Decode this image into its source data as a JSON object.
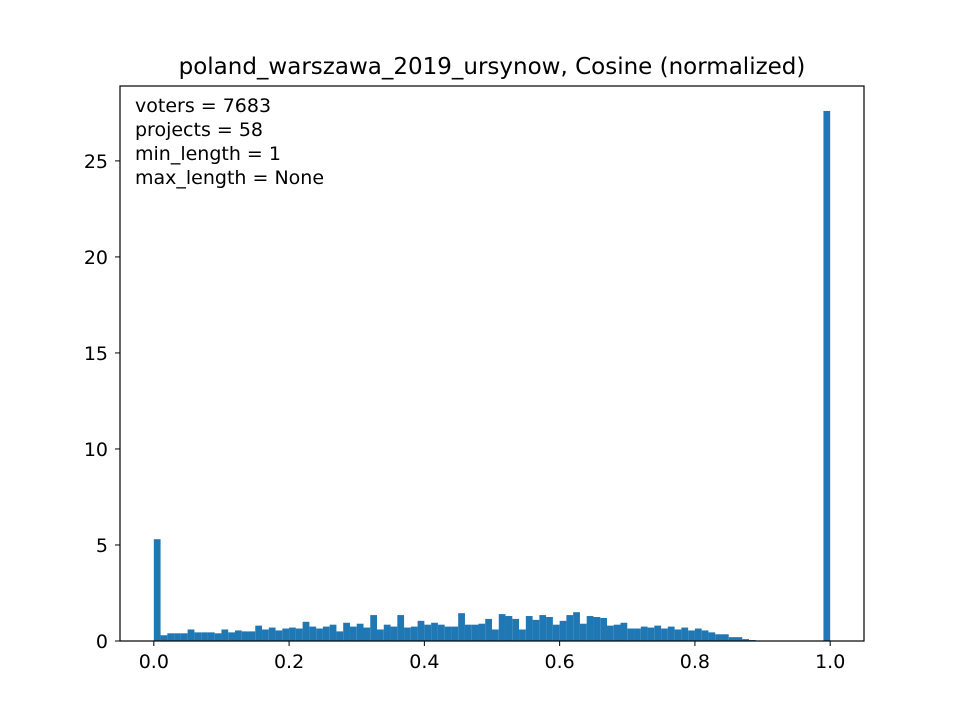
{
  "chart_data": {
    "type": "bar",
    "title": "poland_warszawa_2019_ursynow, Cosine (normalized)",
    "xlabel": "",
    "ylabel": "",
    "xlim": [
      -0.05,
      1.05
    ],
    "ylim": [
      0,
      28.9
    ],
    "x_ticks": [
      0.0,
      0.2,
      0.4,
      0.6,
      0.8,
      1.0
    ],
    "x_tick_labels": [
      "0.0",
      "0.2",
      "0.4",
      "0.6",
      "0.8",
      "1.0"
    ],
    "y_ticks": [
      0,
      5,
      10,
      15,
      20,
      25
    ],
    "y_tick_labels": [
      "0",
      "5",
      "10",
      "15",
      "20",
      "25"
    ],
    "bar_color": "#1f77b4",
    "grid": false,
    "legend": "none",
    "bin_width": 0.01,
    "bin_left_edges": [
      0.0,
      0.01,
      0.02,
      0.03,
      0.04,
      0.05,
      0.06,
      0.07,
      0.08,
      0.09,
      0.1,
      0.11,
      0.12,
      0.13,
      0.14,
      0.15,
      0.16,
      0.17,
      0.18,
      0.19,
      0.2,
      0.21,
      0.22,
      0.23,
      0.24,
      0.25,
      0.26,
      0.27,
      0.28,
      0.29,
      0.3,
      0.31,
      0.32,
      0.33,
      0.34,
      0.35,
      0.36,
      0.37,
      0.38,
      0.39,
      0.4,
      0.41,
      0.42,
      0.43,
      0.44,
      0.45,
      0.46,
      0.47,
      0.48,
      0.49,
      0.5,
      0.51,
      0.52,
      0.53,
      0.54,
      0.55,
      0.56,
      0.57,
      0.58,
      0.59,
      0.6,
      0.61,
      0.62,
      0.63,
      0.64,
      0.65,
      0.66,
      0.67,
      0.68,
      0.69,
      0.7,
      0.71,
      0.72,
      0.73,
      0.74,
      0.75,
      0.76,
      0.77,
      0.78,
      0.79,
      0.8,
      0.81,
      0.82,
      0.83,
      0.84,
      0.85,
      0.86,
      0.87,
      0.88,
      0.89,
      0.99
    ],
    "values": [
      5.3,
      0.3,
      0.4,
      0.4,
      0.4,
      0.6,
      0.45,
      0.45,
      0.45,
      0.4,
      0.6,
      0.45,
      0.55,
      0.5,
      0.5,
      0.8,
      0.6,
      0.7,
      0.55,
      0.65,
      0.7,
      0.65,
      1.0,
      0.75,
      0.65,
      0.75,
      0.85,
      0.5,
      0.95,
      0.75,
      0.9,
      0.7,
      1.35,
      0.6,
      0.85,
      0.75,
      1.35,
      0.7,
      0.75,
      1.05,
      0.85,
      0.95,
      0.85,
      0.75,
      0.75,
      1.45,
      0.85,
      0.85,
      0.9,
      1.15,
      0.6,
      1.4,
      1.3,
      1.15,
      0.6,
      1.3,
      1.1,
      1.35,
      1.25,
      0.85,
      1.05,
      1.35,
      1.5,
      0.9,
      1.3,
      1.25,
      1.2,
      0.8,
      0.85,
      0.95,
      0.65,
      0.65,
      0.75,
      0.7,
      0.8,
      0.65,
      0.75,
      0.6,
      0.7,
      0.55,
      0.65,
      0.55,
      0.45,
      0.35,
      0.35,
      0.2,
      0.2,
      0.1,
      0.05,
      0.02,
      27.6
    ],
    "annotations": [
      "voters = 7683",
      "projects = 58",
      "min_length = 1",
      "max_length = None"
    ]
  }
}
